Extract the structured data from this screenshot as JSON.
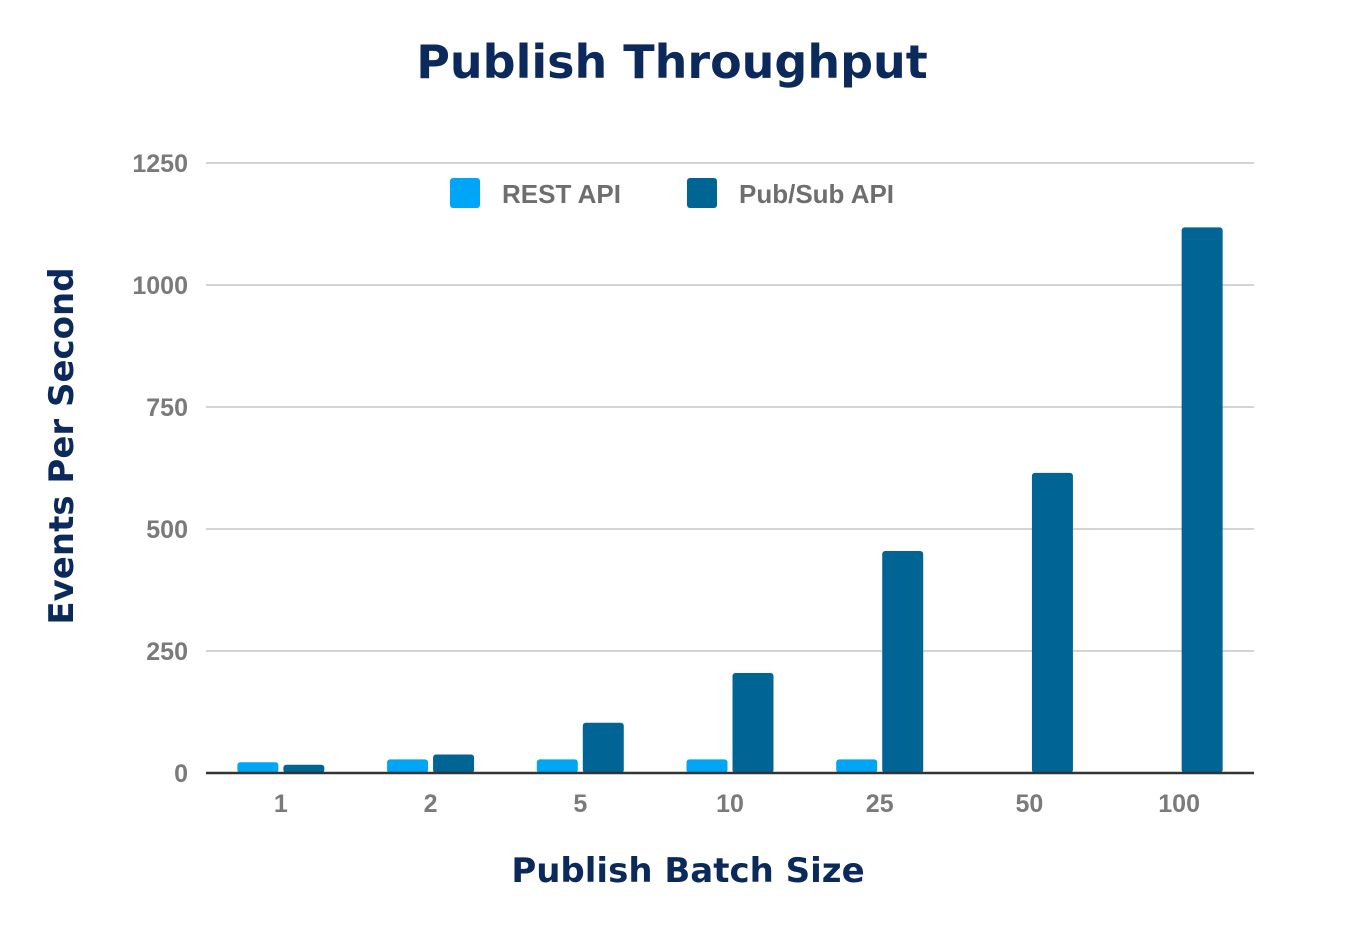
{
  "colors": {
    "rest": "#00a6f5",
    "pubsub": "#006494",
    "title": "#0b2a5b",
    "grid": "#d4d4d4",
    "tick": "#7a7a7a"
  },
  "chart_data": {
    "type": "bar",
    "title": "Publish Throughput",
    "xlabel": "Publish Batch Size",
    "ylabel": "Events Per Second",
    "categories": [
      "1",
      "2",
      "5",
      "10",
      "25",
      "50",
      "100"
    ],
    "series": [
      {
        "name": "REST API",
        "values": [
          22,
          28,
          28,
          28,
          28,
          0,
          0
        ]
      },
      {
        "name": "Pub/Sub API",
        "values": [
          17,
          38,
          103,
          205,
          455,
          615,
          1118
        ]
      }
    ],
    "ylim": [
      0,
      1250
    ],
    "yticks": [
      "0",
      "250",
      "500",
      "750",
      "1000",
      "1250"
    ],
    "grid": true,
    "legend": "top-center"
  }
}
